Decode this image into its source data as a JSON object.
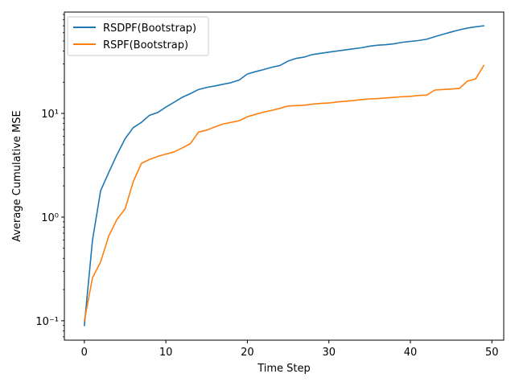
{
  "chart_data": {
    "type": "line",
    "xlabel": "Time Step",
    "ylabel": "Average Cumulative MSE",
    "yscale": "log",
    "xlim": [
      -2.45,
      51.45
    ],
    "ylim": [
      0.065,
      95
    ],
    "grid": false,
    "legend_position": "top-left",
    "x_ticks": [
      0,
      10,
      20,
      30,
      40,
      50
    ],
    "x_tick_labels": [
      "0",
      "10",
      "20",
      "30",
      "40",
      "50"
    ],
    "y_ticks": [
      0.1,
      1,
      10
    ],
    "y_tick_labels": [
      "10⁻¹",
      "10⁰",
      "10¹"
    ],
    "x": [
      0,
      1,
      2,
      3,
      4,
      5,
      6,
      7,
      8,
      9,
      10,
      11,
      12,
      13,
      14,
      15,
      16,
      17,
      18,
      19,
      20,
      21,
      22,
      23,
      24,
      25,
      26,
      27,
      28,
      29,
      30,
      31,
      32,
      33,
      34,
      35,
      36,
      37,
      38,
      39,
      40,
      41,
      42,
      43,
      44,
      45,
      46,
      47,
      48,
      49
    ],
    "series": [
      {
        "name": "RSDPF(Bootstrap)",
        "color": "#1f77b4",
        "values": [
          0.09,
          0.6,
          1.8,
          2.7,
          4.0,
          5.7,
          7.3,
          8.2,
          9.6,
          10.2,
          11.5,
          12.8,
          14.3,
          15.5,
          17.0,
          17.8,
          18.4,
          19.1,
          19.8,
          21.0,
          24.0,
          25.3,
          26.5,
          27.9,
          29.0,
          32.0,
          34.0,
          35.0,
          37.0,
          38.0,
          39.0,
          40.0,
          41.0,
          42.0,
          43.0,
          44.5,
          45.5,
          46.0,
          47.0,
          48.5,
          49.5,
          50.5,
          52.0,
          55.0,
          58.0,
          61.0,
          64.0,
          66.5,
          68.5,
          70.0
        ]
      },
      {
        "name": "RSPF(Bootstrap)",
        "color": "#ff7f0e",
        "values": [
          0.1,
          0.26,
          0.37,
          0.66,
          0.95,
          1.2,
          2.2,
          3.3,
          3.6,
          3.85,
          4.05,
          4.25,
          4.65,
          5.1,
          6.6,
          6.9,
          7.4,
          7.9,
          8.2,
          8.5,
          9.3,
          9.8,
          10.3,
          10.7,
          11.2,
          11.8,
          11.9,
          12.0,
          12.3,
          12.5,
          12.6,
          12.9,
          13.1,
          13.3,
          13.6,
          13.8,
          13.9,
          14.1,
          14.3,
          14.5,
          14.6,
          14.9,
          15.0,
          16.8,
          17.0,
          17.2,
          17.4,
          20.5,
          21.5,
          29.0
        ]
      }
    ]
  }
}
